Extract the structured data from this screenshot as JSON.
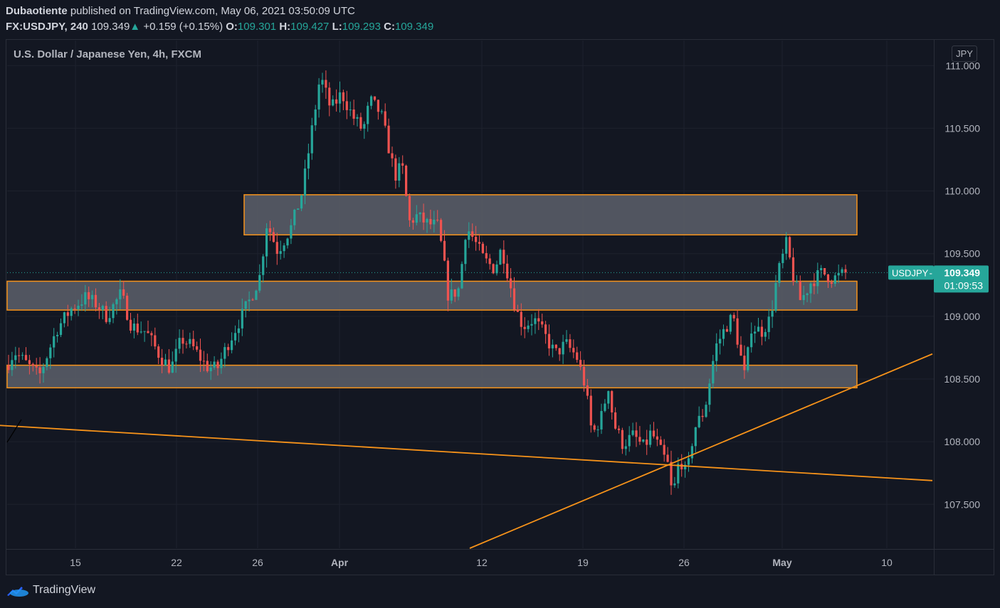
{
  "header": {
    "author": "Dubaotiente",
    "published_text": "published on TradingView.com, May 06, 2021 03:50:09 UTC",
    "symbol": "FX:USDJPY, 240",
    "last": "109.349",
    "arrow": "▲",
    "change": "+0.159 (+0.15%)",
    "o_label": "O:",
    "o_val": "109.301",
    "h_label": "H:",
    "h_val": "109.427",
    "l_label": "L:",
    "l_val": "109.293",
    "c_label": "C:",
    "c_val": "109.349"
  },
  "footer": {
    "brand": "TradingView"
  },
  "colors": {
    "background": "#131722",
    "up": "#26a69a",
    "down": "#ef5350",
    "zone_fill": "#5d606b",
    "zone_border": "#f7931a",
    "trendline": "#f7931a",
    "grid": "#1e222d"
  },
  "chart_data": {
    "type": "candlestick",
    "title": "U.S. Dollar / Japanese Yen, 4h, FXCM",
    "currency": "JPY",
    "ylim": [
      107.15,
      111.2
    ],
    "y_ticks": [
      "111.000",
      "110.500",
      "110.000",
      "109.500",
      "109.000",
      "108.500",
      "108.000",
      "107.500"
    ],
    "x_ticks": [
      {
        "label": "15",
        "bold": false
      },
      {
        "label": "22",
        "bold": false
      },
      {
        "label": "26",
        "bold": false
      },
      {
        "label": "Apr",
        "bold": true
      },
      {
        "label": "12",
        "bold": false
      },
      {
        "label": "19",
        "bold": false
      },
      {
        "label": "26",
        "bold": false
      },
      {
        "label": "May",
        "bold": true
      },
      {
        "label": "10",
        "bold": false
      }
    ],
    "price_label": {
      "symbol": "USDJPY",
      "dash": "-",
      "value": "109.349",
      "countdown": "01:09:53"
    },
    "zones": [
      {
        "top": 109.97,
        "bottom": 109.65
      },
      {
        "top": 109.28,
        "bottom": 109.05
      },
      {
        "top": 108.61,
        "bottom": 108.43
      }
    ],
    "trendlines": [
      {
        "from": [
          0,
          108.13
        ],
        "to": [
          1310,
          107.69
        ]
      },
      {
        "from": [
          660,
          107.15
        ],
        "to": [
          1310,
          108.7
        ]
      }
    ],
    "anchors": [
      [
        0,
        108.5
      ],
      [
        20,
        108.72
      ],
      [
        55,
        108.52
      ],
      [
        80,
        108.9
      ],
      [
        100,
        109.06
      ],
      [
        120,
        109.15
      ],
      [
        135,
        109.1
      ],
      [
        150,
        109.0
      ],
      [
        170,
        109.18
      ],
      [
        185,
        108.92
      ],
      [
        205,
        108.88
      ],
      [
        225,
        108.68
      ],
      [
        240,
        108.58
      ],
      [
        255,
        108.82
      ],
      [
        270,
        108.76
      ],
      [
        290,
        108.6
      ],
      [
        305,
        108.58
      ],
      [
        320,
        108.78
      ],
      [
        335,
        108.95
      ],
      [
        350,
        109.12
      ],
      [
        365,
        109.32
      ],
      [
        375,
        109.75
      ],
      [
        390,
        109.52
      ],
      [
        410,
        109.72
      ],
      [
        425,
        110.0
      ],
      [
        440,
        110.55
      ],
      [
        450,
        110.92
      ],
      [
        465,
        110.65
      ],
      [
        480,
        110.78
      ],
      [
        495,
        110.6
      ],
      [
        510,
        110.48
      ],
      [
        520,
        110.72
      ],
      [
        535,
        110.62
      ],
      [
        548,
        110.3
      ],
      [
        555,
        110.12
      ],
      [
        565,
        110.2
      ],
      [
        575,
        109.75
      ],
      [
        585,
        109.8
      ],
      [
        600,
        109.74
      ],
      [
        615,
        109.72
      ],
      [
        622,
        109.5
      ],
      [
        630,
        109.15
      ],
      [
        645,
        109.22
      ],
      [
        655,
        109.72
      ],
      [
        665,
        109.62
      ],
      [
        680,
        109.45
      ],
      [
        695,
        109.38
      ],
      [
        705,
        109.55
      ],
      [
        715,
        109.3
      ],
      [
        725,
        109.05
      ],
      [
        735,
        108.92
      ],
      [
        750,
        108.98
      ],
      [
        765,
        108.85
      ],
      [
        780,
        108.7
      ],
      [
        795,
        108.78
      ],
      [
        810,
        108.68
      ],
      [
        822,
        108.45
      ],
      [
        832,
        108.05
      ],
      [
        845,
        108.2
      ],
      [
        855,
        108.45
      ],
      [
        862,
        108.15
      ],
      [
        875,
        107.98
      ],
      [
        890,
        108.05
      ],
      [
        905,
        107.95
      ],
      [
        915,
        108.08
      ],
      [
        930,
        107.9
      ],
      [
        938,
        107.82
      ],
      [
        945,
        107.55
      ],
      [
        955,
        107.88
      ],
      [
        965,
        107.72
      ],
      [
        975,
        108.1
      ],
      [
        990,
        108.25
      ],
      [
        1005,
        108.75
      ],
      [
        1020,
        108.92
      ],
      [
        1030,
        109.0
      ],
      [
        1040,
        108.7
      ],
      [
        1047,
        108.5
      ],
      [
        1055,
        108.92
      ],
      [
        1070,
        108.88
      ],
      [
        1082,
        108.98
      ],
      [
        1092,
        109.32
      ],
      [
        1105,
        109.58
      ],
      [
        1115,
        109.3
      ],
      [
        1125,
        109.12
      ],
      [
        1140,
        109.28
      ],
      [
        1155,
        109.35
      ],
      [
        1170,
        109.3
      ],
      [
        1190,
        109.349
      ]
    ]
  }
}
